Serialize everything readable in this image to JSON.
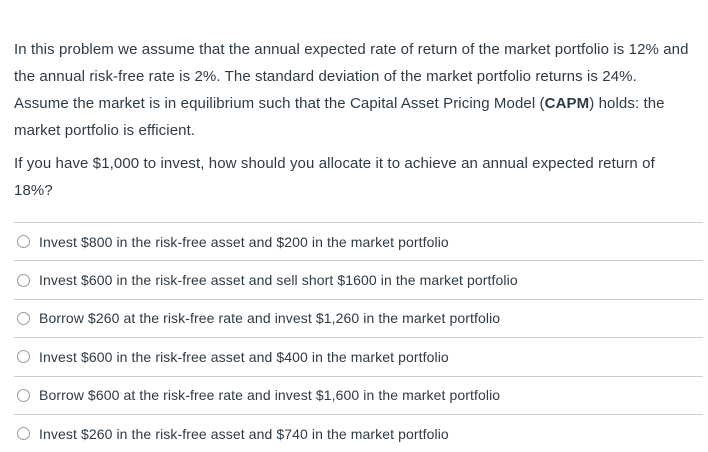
{
  "question": {
    "paragraph1_before_bold": "In this problem we assume that the annual expected rate of return of the market portfolio is 12% and the annual risk-free rate is 2%. The standard deviation of the market portfolio returns is 24%. Assume the market is in equilibrium such that the Capital Asset Pricing Model (",
    "paragraph1_bold": "CAPM",
    "paragraph1_after_bold": ") holds: the market portfolio is efficient.",
    "paragraph2": "If you have $1,000 to invest, how should you allocate it to achieve an annual expected return of 18%?"
  },
  "options": [
    {
      "label": "Invest $800 in the risk-free asset and $200 in the market portfolio",
      "selected": false
    },
    {
      "label": "Invest $600 in the risk-free asset and sell short $1600 in the market portfolio",
      "selected": false
    },
    {
      "label": "Borrow $260 at the risk-free rate and invest $1,260 in the market portfolio",
      "selected": false
    },
    {
      "label": "Invest $600 in the risk-free asset and $400 in the market portfolio",
      "selected": false
    },
    {
      "label": "Borrow $600 at the risk-free rate and invest $1,600 in the market portfolio",
      "selected": false
    },
    {
      "label": "Invest $260 in the risk-free asset and $740 in the market portfolio",
      "selected": false
    }
  ],
  "colors": {
    "text": "#2d3b45",
    "divider": "#c7cdd1",
    "radio_border": "#949ca4",
    "background": "#ffffff"
  }
}
